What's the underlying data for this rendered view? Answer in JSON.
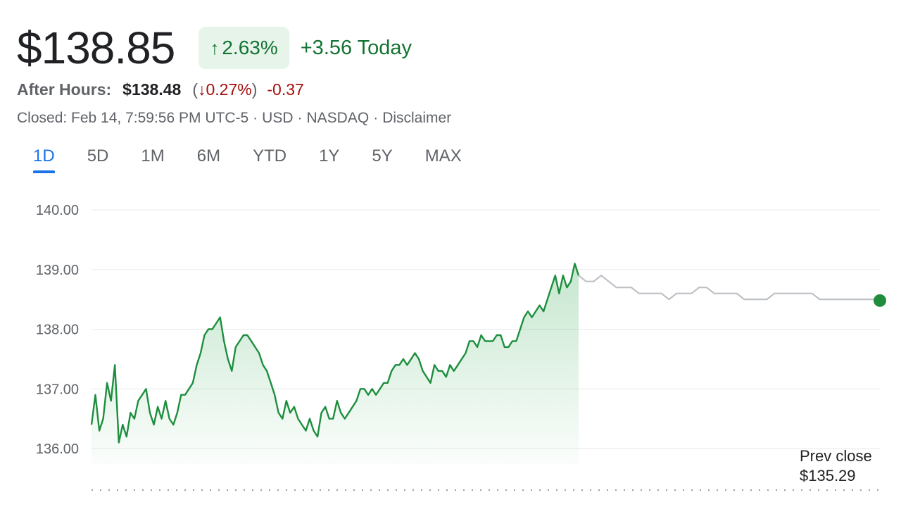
{
  "quote": {
    "price": "$138.85",
    "change_percent": "2.63%",
    "change_today": "+3.56 Today",
    "after_hours_label": "After Hours:",
    "after_hours_price": "$138.48",
    "after_hours_percent": "0.27%",
    "after_hours_change": "-0.37",
    "closed": "Closed: Feb 14, 7:59:56 PM UTC-5",
    "currency": "USD",
    "exchange": "NASDAQ",
    "disclaimer": "Disclaimer"
  },
  "ranges": [
    "1D",
    "5D",
    "1M",
    "6M",
    "YTD",
    "1Y",
    "5Y",
    "MAX"
  ],
  "active_range": "1D",
  "colors": {
    "up": "#1e8e3e",
    "down": "#a50e0e",
    "after_hours_line": "#bdc1c6",
    "accent": "#1a73e8"
  },
  "prev_close": {
    "label": "Prev close",
    "value": "$135.29"
  },
  "chart_data": {
    "type": "line",
    "yticks": [
      "140.00",
      "139.00",
      "138.00",
      "137.00",
      "136.00"
    ],
    "ylim": [
      136.0,
      140.0
    ],
    "grid": true,
    "prev_close": 135.29,
    "series": [
      {
        "session": "regular",
        "values": [
          136.4,
          136.9,
          136.3,
          136.5,
          137.1,
          136.8,
          137.4,
          136.1,
          136.4,
          136.2,
          136.6,
          136.5,
          136.8,
          136.9,
          137.0,
          136.6,
          136.4,
          136.7,
          136.5,
          136.8,
          136.5,
          136.4,
          136.6,
          136.9,
          136.9,
          137.0,
          137.1,
          137.4,
          137.6,
          137.9,
          138.0,
          138.0,
          138.1,
          138.2,
          137.8,
          137.5,
          137.3,
          137.7,
          137.8,
          137.9,
          137.9,
          137.8,
          137.7,
          137.6,
          137.4,
          137.3,
          137.1,
          136.9,
          136.6,
          136.5,
          136.8,
          136.6,
          136.7,
          136.5,
          136.4,
          136.3,
          136.5,
          136.3,
          136.2,
          136.6,
          136.7,
          136.5,
          136.5,
          136.8,
          136.6,
          136.5,
          136.6,
          136.7,
          136.8,
          137.0,
          137.0,
          136.9,
          137.0,
          136.9,
          137.0,
          137.1,
          137.1,
          137.3,
          137.4,
          137.4,
          137.5,
          137.4,
          137.5,
          137.6,
          137.5,
          137.3,
          137.2,
          137.1,
          137.4,
          137.3,
          137.3,
          137.2,
          137.4,
          137.3,
          137.4,
          137.5,
          137.6,
          137.8,
          137.8,
          137.7,
          137.9,
          137.8,
          137.8,
          137.8,
          137.9,
          137.9,
          137.7,
          137.7,
          137.8,
          137.8,
          138.0,
          138.2,
          138.3,
          138.2,
          138.3,
          138.4,
          138.3,
          138.5,
          138.7,
          138.9,
          138.6,
          138.9,
          138.7,
          138.8,
          139.1,
          138.9
        ]
      },
      {
        "session": "after-hours",
        "values": [
          138.9,
          138.8,
          138.8,
          138.9,
          138.8,
          138.7,
          138.7,
          138.7,
          138.6,
          138.6,
          138.6,
          138.6,
          138.5,
          138.6,
          138.6,
          138.6,
          138.7,
          138.7,
          138.6,
          138.6,
          138.6,
          138.6,
          138.5,
          138.5,
          138.5,
          138.5,
          138.6,
          138.6,
          138.6,
          138.6,
          138.6,
          138.6,
          138.5,
          138.5,
          138.5,
          138.5,
          138.5,
          138.5,
          138.5,
          138.5,
          138.48
        ]
      }
    ]
  }
}
